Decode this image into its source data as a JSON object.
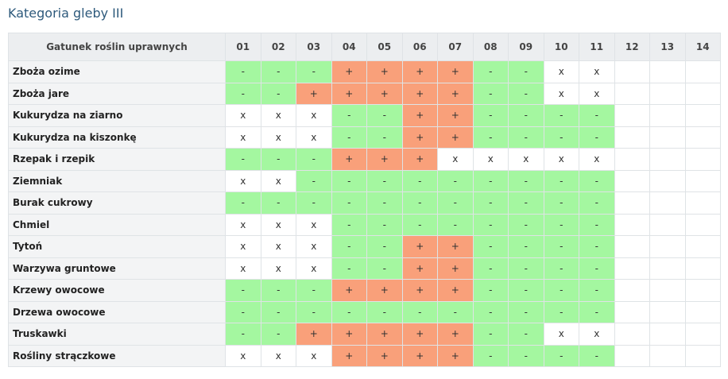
{
  "page": {
    "title": "Kategoria gleby III"
  },
  "table": {
    "crop_header": "Gatunek roślin uprawnych",
    "columns": [
      "01",
      "02",
      "03",
      "04",
      "05",
      "06",
      "07",
      "08",
      "09",
      "10",
      "11",
      "12",
      "13",
      "14"
    ],
    "rows": [
      {
        "name": "Zboża ozime",
        "cells": [
          "-",
          "-",
          "-",
          "+",
          "+",
          "+",
          "+",
          "-",
          "-",
          "x",
          "x",
          "",
          "",
          " "
        ]
      },
      {
        "name": "Zboża jare",
        "cells": [
          "-",
          "-",
          "+",
          "+",
          "+",
          "+",
          "+",
          "-",
          "-",
          "x",
          "x",
          "",
          "",
          ""
        ]
      },
      {
        "name": "Kukurydza na ziarno",
        "cells": [
          "x",
          "x",
          "x",
          "-",
          "-",
          "+",
          "+",
          "-",
          "-",
          "-",
          "-",
          "",
          "",
          ""
        ]
      },
      {
        "name": "Kukurydza na kiszonkę",
        "cells": [
          "x",
          "x",
          "x",
          "-",
          "-",
          "+",
          "+",
          "-",
          "-",
          "-",
          "-",
          "",
          "",
          ""
        ]
      },
      {
        "name": "Rzepak i rzepik",
        "cells": [
          "-",
          "-",
          "-",
          "+",
          "+",
          "+",
          "x",
          "x",
          "x",
          "x",
          "x",
          "",
          "",
          ""
        ]
      },
      {
        "name": "Ziemniak",
        "cells": [
          "x",
          "x",
          "-",
          "-",
          "-",
          "-",
          "-",
          "-",
          "-",
          "-",
          "-",
          "",
          "",
          ""
        ]
      },
      {
        "name": "Burak cukrowy",
        "cells": [
          "-",
          "-",
          "-",
          "-",
          "-",
          "-",
          "-",
          "-",
          "-",
          "-",
          "-",
          "",
          "",
          ""
        ]
      },
      {
        "name": "Chmiel",
        "cells": [
          "x",
          "x",
          "x",
          "-",
          "-",
          "-",
          "-",
          "-",
          "-",
          "-",
          "-",
          "",
          "",
          ""
        ]
      },
      {
        "name": "Tytoń",
        "cells": [
          "x",
          "x",
          "x",
          "-",
          "-",
          "+",
          "+",
          "-",
          "-",
          "-",
          "-",
          "",
          "",
          ""
        ]
      },
      {
        "name": "Warzywa gruntowe",
        "cells": [
          "x",
          "x",
          "x",
          "-",
          "-",
          "+",
          "+",
          "-",
          "-",
          "-",
          "-",
          "",
          "",
          ""
        ]
      },
      {
        "name": "Krzewy owocowe",
        "cells": [
          "-",
          "-",
          "-",
          "+",
          "+",
          "+",
          "+",
          "-",
          "-",
          "-",
          "-",
          "",
          "",
          ""
        ]
      },
      {
        "name": "Drzewa owocowe",
        "cells": [
          "-",
          "-",
          "-",
          "-",
          "-",
          "-",
          "-",
          "-",
          "-",
          "-",
          "-",
          "",
          "",
          ""
        ]
      },
      {
        "name": "Truskawki",
        "cells": [
          "-",
          "-",
          "+",
          "+",
          "+",
          "+",
          "+",
          "-",
          "-",
          "x",
          "x",
          "",
          "",
          ""
        ]
      },
      {
        "name": "Rośliny strączkowe",
        "cells": [
          "x",
          "x",
          "x",
          "+",
          "+",
          "+",
          "+",
          "-",
          "-",
          "-",
          "-",
          "",
          "",
          ""
        ]
      }
    ]
  },
  "colors": {
    "plus": "#f9a07a",
    "minus": "#a4f7a0",
    "x": "#ffffff",
    "title": "#2e5a7c"
  }
}
